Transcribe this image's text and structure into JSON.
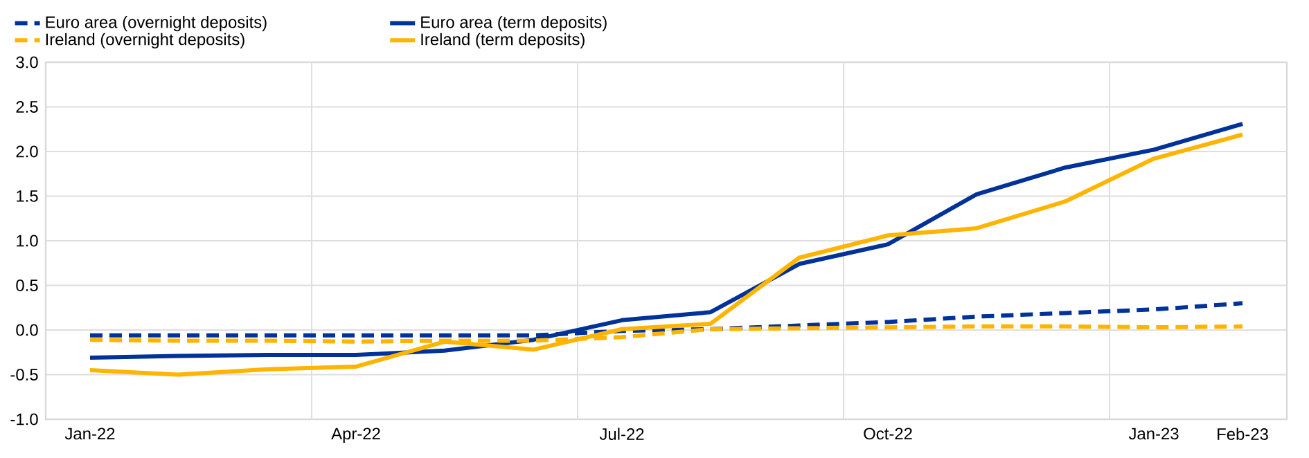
{
  "chart_data": {
    "type": "line",
    "categories": [
      "Jan-22",
      null,
      null,
      "Apr-22",
      null,
      null,
      "Jul-22",
      null,
      null,
      "Oct-22",
      null,
      null,
      "Jan-23",
      "Feb-23"
    ],
    "series": [
      {
        "name": "Euro area (overnight deposits)",
        "color": "#003299",
        "line_style": "dashed",
        "values": [
          -0.06,
          -0.06,
          -0.06,
          -0.06,
          -0.06,
          -0.06,
          -0.01,
          0.01,
          0.05,
          0.09,
          0.15,
          0.19,
          0.23,
          0.3
        ]
      },
      {
        "name": "Euro area (term deposits)",
        "color": "#003299",
        "line_style": "solid",
        "values": [
          -0.31,
          -0.29,
          -0.28,
          -0.28,
          -0.23,
          -0.11,
          0.11,
          0.2,
          0.74,
          0.96,
          1.52,
          1.82,
          2.02,
          2.31
        ]
      },
      {
        "name": "Ireland (overnight deposits)",
        "color": "#ffb400",
        "line_style": "dashed",
        "values": [
          -0.11,
          -0.12,
          -0.12,
          -0.13,
          -0.12,
          -0.12,
          -0.08,
          0.01,
          0.02,
          0.03,
          0.04,
          0.04,
          0.03,
          0.04
        ]
      },
      {
        "name": "Ireland (term deposits)",
        "color": "#ffb400",
        "line_style": "solid",
        "values": [
          -0.45,
          -0.5,
          -0.44,
          -0.41,
          -0.13,
          -0.22,
          0.01,
          0.07,
          0.81,
          1.06,
          1.14,
          1.44,
          1.92,
          2.19
        ]
      }
    ],
    "ylim": [
      -1.0,
      3.0
    ],
    "yticks": [
      {
        "value": -1.0,
        "label": "-1.0"
      },
      {
        "value": -0.5,
        "label": "-0.5"
      },
      {
        "value": 0,
        "label": "0.0"
      },
      {
        "value": 0.5,
        "label": "0.5"
      },
      {
        "value": 1.0,
        "label": "1.0"
      },
      {
        "value": 1.5,
        "label": "1.5"
      },
      {
        "value": 2.0,
        "label": "2.0"
      },
      {
        "value": 2.5,
        "label": "2.5"
      },
      {
        "value": 3.0,
        "label": "3.0"
      }
    ],
    "grid": true,
    "legend": "top",
    "marker": "none"
  }
}
